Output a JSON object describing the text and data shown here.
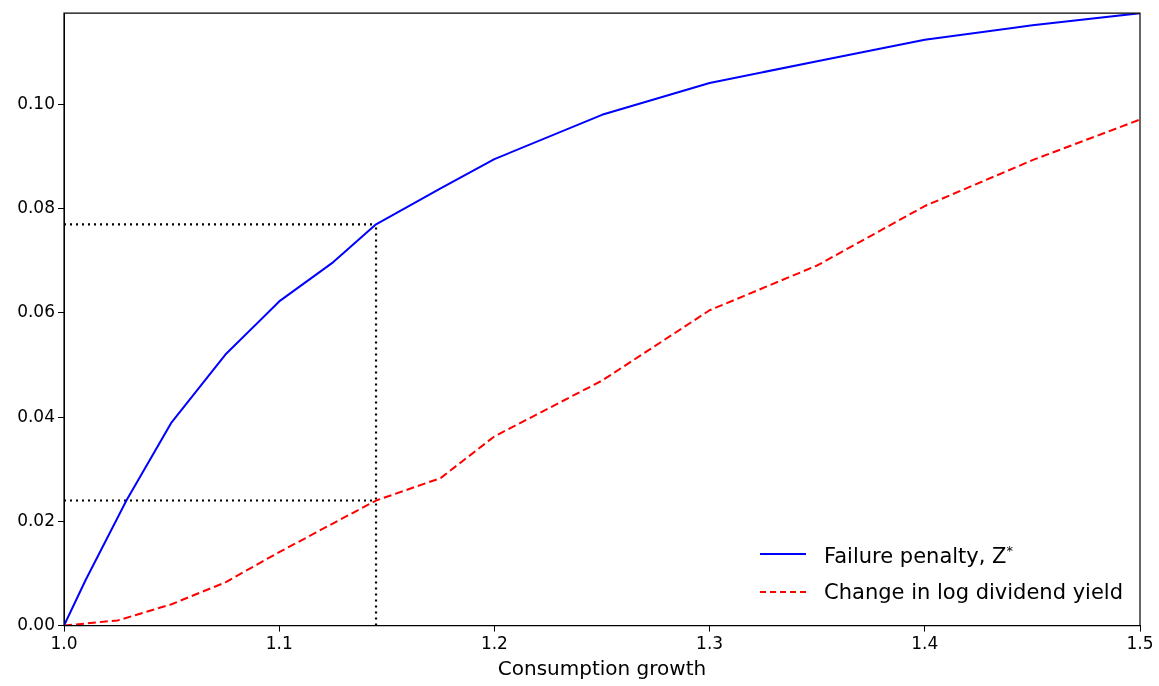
{
  "chart_data": {
    "type": "line",
    "xlabel": "Consumption growth",
    "xlim": [
      1.0,
      1.5
    ],
    "ylim": [
      0,
      0.1175
    ],
    "xticks": [
      {
        "value": 1.0,
        "label": "1.0"
      },
      1.1,
      1.2,
      1.3,
      1.4,
      {
        "value": 1.5,
        "label": "1.5"
      }
    ],
    "yticks": [
      {
        "value": 0,
        "label": "0.00"
      },
      {
        "value": 0.02,
        "label": "0.02"
      },
      {
        "value": 0.04,
        "label": "0.04"
      },
      {
        "value": 0.06,
        "label": "0.06"
      },
      {
        "value": 0.08,
        "label": "0.08"
      },
      {
        "value": 0.1,
        "label": "0.10"
      }
    ],
    "grid": false,
    "legend": "bottom right",
    "marker": "none",
    "series": [
      {
        "name": "Failure penalty, Z$^{*}$",
        "color": "#0000ff",
        "line_style": "solid",
        "x": [
          1.0,
          1.01,
          1.029,
          1.05,
          1.075,
          1.1,
          1.125,
          1.145,
          1.175,
          1.2,
          1.25,
          1.3,
          1.35,
          1.4,
          1.45,
          1.5
        ],
        "values": [
          0,
          0.0087,
          0.024,
          0.039,
          0.052,
          0.0622,
          0.0697,
          0.077,
          0.0839,
          0.0895,
          0.098,
          0.1041,
          0.1083,
          0.1124,
          0.1152,
          0.1175
        ]
      },
      {
        "name": "Change in log dividend yield",
        "color": "#ff0000",
        "line_style": "dashed",
        "x": [
          1.0,
          1.025,
          1.05,
          1.075,
          1.1,
          1.145,
          1.175,
          1.2,
          1.25,
          1.3,
          1.35,
          1.4,
          1.45,
          1.5
        ],
        "values": [
          0,
          0.001,
          0.0041,
          0.0083,
          0.0141,
          0.024,
          0.0283,
          0.0363,
          0.047,
          0.0605,
          0.0691,
          0.0805,
          0.0893,
          0.0971
        ]
      },
      {
        "color": "#000000",
        "line_style": "dotted",
        "x": [
          1.0,
          1.145
        ],
        "values": [
          0.077,
          0.077
        ]
      },
      {
        "color": "#000000",
        "line_style": "dotted",
        "x": [
          1.0,
          1.145
        ],
        "values": [
          0.024,
          0.024
        ]
      },
      {
        "color": "#000000",
        "line_style": "dotted",
        "x": [
          1.145,
          1.145
        ],
        "values": [
          0,
          0.077
        ]
      }
    ]
  }
}
